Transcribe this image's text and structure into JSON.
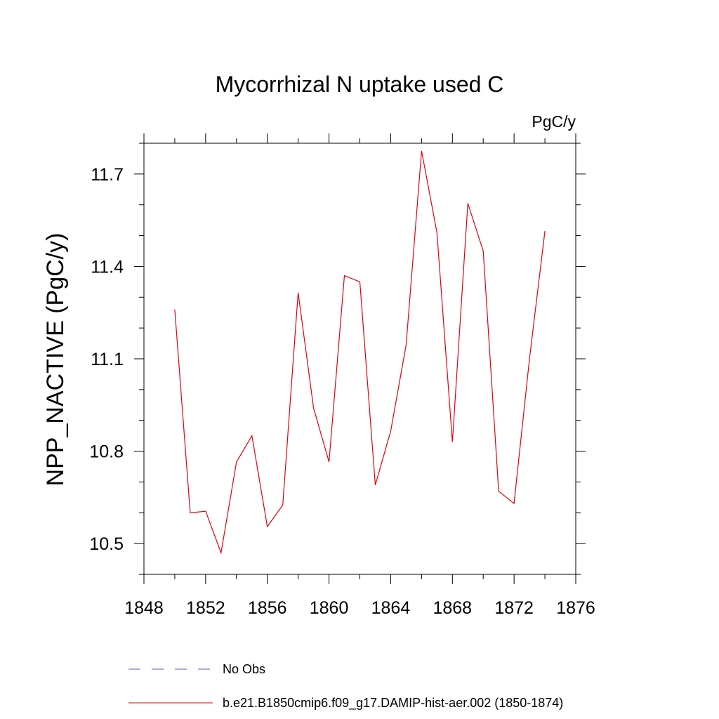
{
  "chart_data": {
    "type": "line",
    "title": "Mycorrhizal N uptake used C",
    "units_label": "PgC/y",
    "xlabel": "",
    "ylabel": "NPP_NACTIVE  (PgC/y)",
    "xlim": [
      1848,
      1876
    ],
    "ylim": [
      10.4,
      11.8
    ],
    "x_ticks": [
      1848,
      1852,
      1856,
      1860,
      1864,
      1868,
      1872,
      1876
    ],
    "y_ticks": [
      10.5,
      10.8,
      11.1,
      11.4,
      11.7
    ],
    "y_tick_labels": [
      "10.5",
      "10.8",
      "11.1",
      "11.4",
      "11.7"
    ],
    "grid": false,
    "legend_position": "bottom",
    "series": [
      {
        "name": "b.e21.B1850cmip6.f09_g17.DAMIP-hist-aer.002 (1850-1874)",
        "color": "#e0000e",
        "style": "solid",
        "x": [
          1850,
          1851,
          1852,
          1853,
          1854,
          1855,
          1856,
          1857,
          1858,
          1859,
          1860,
          1861,
          1862,
          1863,
          1864,
          1865,
          1866,
          1867,
          1868,
          1869,
          1870,
          1871,
          1872,
          1873,
          1874
        ],
        "y": [
          11.26,
          10.6,
          10.605,
          10.47,
          10.765,
          10.85,
          10.555,
          10.625,
          11.315,
          10.94,
          10.765,
          11.37,
          11.35,
          10.69,
          10.865,
          11.145,
          11.775,
          11.51,
          10.83,
          11.605,
          11.45,
          10.67,
          10.63,
          11.1,
          11.515
        ]
      }
    ],
    "legend": [
      {
        "label": "No Obs",
        "color": "#5a5ab8",
        "style": "dashed"
      },
      {
        "label": "b.e21.B1850cmip6.f09_g17.DAMIP-hist-aer.002 (1850-1874)",
        "color": "#e0000e",
        "style": "solid"
      }
    ]
  }
}
